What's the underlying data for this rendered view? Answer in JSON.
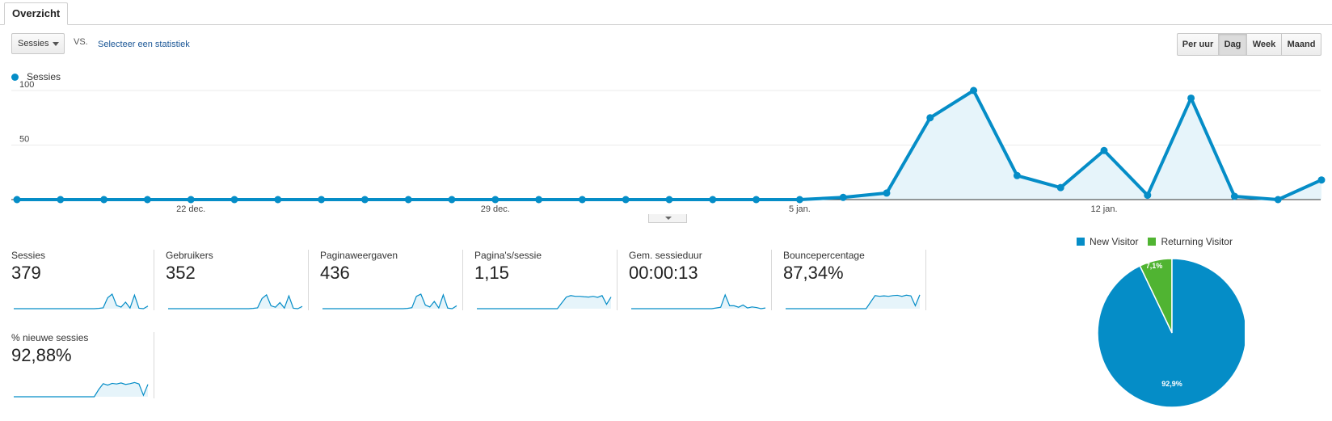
{
  "tabs": {
    "overview": "Overzicht"
  },
  "controls": {
    "metric": "Sessies",
    "vs": "VS.",
    "compare_link": "Selecteer een statistiek",
    "periods": [
      "Per uur",
      "Dag",
      "Week",
      "Maand"
    ],
    "active_period": "Dag"
  },
  "colors": {
    "sessions": "#058dc7",
    "new_visitor": "#058dc7",
    "returning_visitor": "#50b432",
    "area_fill": "#e6f4fa"
  },
  "chart_data": [
    {
      "type": "line",
      "series": [
        {
          "name": "Sessies",
          "values": [
            0,
            0,
            0,
            0,
            0,
            0,
            0,
            0,
            0,
            0,
            0,
            0,
            0,
            0,
            0,
            0,
            0,
            0,
            0,
            2,
            6,
            75,
            100,
            22,
            11,
            45,
            4,
            93,
            3,
            0,
            18
          ]
        }
      ],
      "x_tick_labels": [
        {
          "label": "22 dec.",
          "index": 4
        },
        {
          "label": "29 dec.",
          "index": 11
        },
        {
          "label": "5 jan.",
          "index": 18
        },
        {
          "label": "12 jan.",
          "index": 25
        }
      ],
      "y_tick_labels": [
        "100",
        "50"
      ],
      "ylim": [
        0,
        100
      ],
      "grid": true
    },
    {
      "type": "pie",
      "categories": [
        "New Visitor",
        "Returning Visitor"
      ],
      "values": [
        92.9,
        7.1
      ],
      "labels": [
        "92,9%",
        "7,1%"
      ],
      "legend": "top"
    }
  ],
  "metrics": [
    {
      "label": "Sessies",
      "value": "379",
      "spark": [
        0,
        0,
        0,
        0,
        0,
        0,
        0,
        0,
        0,
        0,
        0,
        0,
        0,
        0,
        0,
        0,
        0,
        0,
        0,
        2,
        6,
        75,
        100,
        22,
        11,
        45,
        4,
        93,
        3,
        0,
        18
      ]
    },
    {
      "label": "Gebruikers",
      "value": "352",
      "spark": [
        0,
        0,
        0,
        0,
        0,
        0,
        0,
        0,
        0,
        0,
        0,
        0,
        0,
        0,
        0,
        0,
        0,
        0,
        0,
        2,
        6,
        70,
        95,
        20,
        10,
        42,
        4,
        88,
        3,
        0,
        16
      ]
    },
    {
      "label": "Paginaweergaven",
      "value": "436",
      "spark": [
        0,
        0,
        0,
        0,
        0,
        0,
        0,
        0,
        0,
        0,
        0,
        0,
        0,
        0,
        0,
        0,
        0,
        0,
        0,
        2,
        7,
        85,
        100,
        25,
        12,
        50,
        5,
        95,
        4,
        0,
        20
      ]
    },
    {
      "label": "Pagina's/sessie",
      "value": "1,15",
      "spark": [
        0,
        0,
        0,
        0,
        0,
        0,
        0,
        0,
        0,
        0,
        0,
        0,
        0,
        0,
        0,
        0,
        0,
        0,
        0,
        40,
        80,
        90,
        85,
        85,
        82,
        80,
        85,
        78,
        90,
        30,
        80
      ]
    },
    {
      "label": "Gem. sessieduur",
      "value": "00:00:13",
      "spark": [
        0,
        0,
        0,
        0,
        0,
        0,
        0,
        0,
        0,
        0,
        0,
        0,
        0,
        0,
        0,
        0,
        0,
        0,
        0,
        5,
        10,
        95,
        20,
        20,
        10,
        25,
        5,
        12,
        8,
        0,
        5
      ]
    },
    {
      "label": "Bouncepercentage",
      "value": "87,34%",
      "spark": [
        0,
        0,
        0,
        0,
        0,
        0,
        0,
        0,
        0,
        0,
        0,
        0,
        0,
        0,
        0,
        0,
        0,
        0,
        0,
        45,
        90,
        85,
        88,
        85,
        90,
        92,
        85,
        93,
        88,
        20,
        95
      ]
    },
    {
      "label": "% nieuwe sessies",
      "value": "92,88%",
      "spark": [
        0,
        0,
        0,
        0,
        0,
        0,
        0,
        0,
        0,
        0,
        0,
        0,
        0,
        0,
        0,
        0,
        0,
        0,
        0,
        50,
        90,
        80,
        92,
        88,
        95,
        85,
        90,
        98,
        88,
        10,
        85
      ]
    }
  ]
}
